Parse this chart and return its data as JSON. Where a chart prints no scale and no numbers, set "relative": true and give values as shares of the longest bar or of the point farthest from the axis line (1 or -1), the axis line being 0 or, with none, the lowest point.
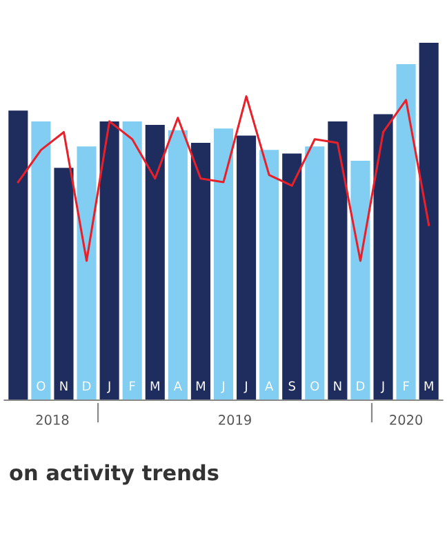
{
  "chart_data": {
    "type": "bar",
    "relative": true,
    "title": "on activity trends",
    "categories": [
      null,
      "O",
      "N",
      "D",
      "J",
      "F",
      "M",
      "A",
      "M",
      "J",
      "J",
      "A",
      "S",
      "O",
      "N",
      "D",
      "J",
      "F",
      "M"
    ],
    "series": [
      {
        "colors": [
          "#1f2d5e",
          "#82cef2",
          "#1f2d5e",
          "#82cef2",
          "#1f2d5e",
          "#82cef2",
          "#1f2d5e",
          "#82cef2",
          "#1f2d5e",
          "#82cef2",
          "#1f2d5e",
          "#82cef2",
          "#1f2d5e",
          "#82cef2",
          "#1f2d5e",
          "#82cef2",
          "#1f2d5e",
          "#82cef2",
          "#1f2d5e"
        ],
        "values": [
          0.81,
          0.78,
          0.65,
          0.71,
          0.78,
          0.78,
          0.77,
          0.755,
          0.72,
          0.76,
          0.74,
          0.7,
          0.69,
          0.71,
          0.78,
          0.67,
          0.8,
          0.94,
          1
        ]
      },
      {
        "type": "line",
        "color": "#e8202a",
        "values": [
          0.61,
          0.7,
          0.75,
          0.39,
          0.78,
          0.73,
          0.62,
          0.79,
          0.62,
          0.61,
          0.85,
          0.63,
          0.6,
          0.73,
          0.72,
          0.39,
          0.75,
          0.84,
          0.49
        ]
      }
    ],
    "annotations": [
      "2018",
      "2019",
      "2020"
    ]
  }
}
